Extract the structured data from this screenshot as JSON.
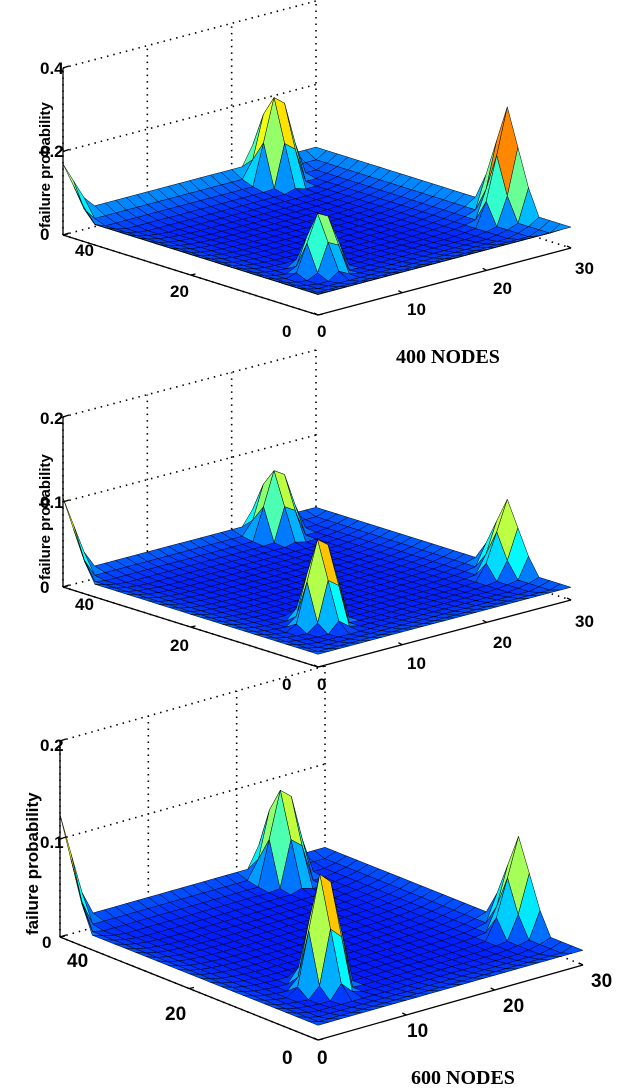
{
  "chart_data": [
    {
      "type": "surface",
      "zlabel": "failure probability",
      "caption": "400 NODES",
      "x_ticks": [
        "0",
        "10",
        "20",
        "30"
      ],
      "y_ticks": [
        "0",
        "20",
        "40"
      ],
      "z_ticks": [
        "0",
        "0.2",
        "0.4"
      ],
      "xlim": [
        0,
        30
      ],
      "ylim": [
        0,
        40
      ],
      "zlim": [
        0,
        0.4
      ],
      "grid": true,
      "colormap": "jet",
      "surface_params": {
        "base": 0.01,
        "edge": 0.04,
        "peaks": [
          {
            "x": 8,
            "y": 10,
            "z": 0.17
          },
          {
            "x": 23,
            "y": 37,
            "z": 0.26
          },
          {
            "x": 30,
            "y": 10,
            "z": 0.24
          },
          {
            "x": 0,
            "y": 40,
            "z": 0.12
          }
        ]
      }
    },
    {
      "type": "surface",
      "zlabel": "failure probability",
      "caption": "",
      "x_ticks": [
        "0",
        "10",
        "20",
        "30"
      ],
      "y_ticks": [
        "0",
        "20",
        "40"
      ],
      "z_ticks": [
        "0",
        "0.1",
        "0.2"
      ],
      "xlim": [
        0,
        30
      ],
      "ylim": [
        0,
        40
      ],
      "zlim": [
        0,
        0.2
      ],
      "grid": true,
      "colormap": "jet",
      "surface_params": {
        "base": 0.005,
        "edge": 0.01,
        "peaks": [
          {
            "x": 8,
            "y": 10,
            "z": 0.12
          },
          {
            "x": 23,
            "y": 37,
            "z": 0.1
          },
          {
            "x": 30,
            "y": 10,
            "z": 0.08
          },
          {
            "x": 0,
            "y": 40,
            "z": 0.09
          }
        ]
      }
    },
    {
      "type": "surface",
      "zlabel": "failure probability",
      "caption": "600 NODES",
      "x_ticks": [
        "0",
        "10",
        "20",
        "30"
      ],
      "y_ticks": [
        "0",
        "20",
        "40"
      ],
      "z_ticks": [
        "0",
        "0.1",
        "0.2"
      ],
      "xlim": [
        0,
        30
      ],
      "ylim": [
        0,
        40
      ],
      "zlim": [
        0,
        0.2
      ],
      "grid": true,
      "colormap": "jet",
      "surface_params": {
        "base": 0.005,
        "edge": 0.01,
        "peaks": [
          {
            "x": 8,
            "y": 10,
            "z": 0.14
          },
          {
            "x": 23,
            "y": 37,
            "z": 0.12
          },
          {
            "x": 30,
            "y": 10,
            "z": 0.09
          },
          {
            "x": 0,
            "y": 40,
            "z": 0.11
          }
        ]
      }
    }
  ]
}
